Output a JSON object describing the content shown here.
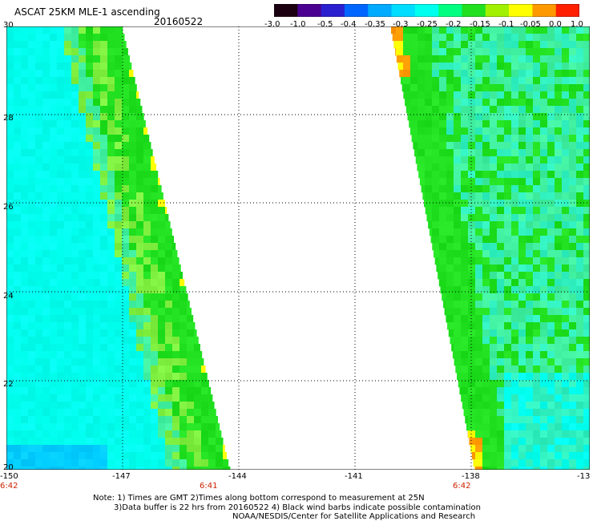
{
  "header": {
    "title": "ASCAT 25KM MLE-1 ascending",
    "date": "20160522"
  },
  "colorbar": {
    "labels": [
      "-3.0",
      "-1.0",
      "-0.5",
      "-0.4",
      "-0.35",
      "-0.3",
      "-0.25",
      "-0.2",
      "-0.15",
      "-0.1",
      "-0.05",
      "0.0",
      "1.0"
    ],
    "colors": [
      "#1a0010",
      "#4a0090",
      "#2a20d0",
      "#0066ff",
      "#00aaff",
      "#00ddff",
      "#00ffee",
      "#00ff80",
      "#20e020",
      "#a0f000",
      "#ffff00",
      "#ff9900",
      "#ff2000"
    ]
  },
  "axes": {
    "y_ticks": [
      "30",
      "28",
      "26",
      "24",
      "22",
      "20"
    ],
    "x_ticks": [
      "-150",
      "-147",
      "-144",
      "-141",
      "-138",
      "-13"
    ],
    "x_range": [
      -150,
      -135
    ],
    "y_range": [
      20,
      30
    ]
  },
  "times": [
    "6:42",
    "6:41",
    "6:42"
  ],
  "notes": {
    "line1": "Note: 1) Times are GMT 2)Times along bottom correspond to measurement at 25N",
    "line2": "3)Data buffer is 22 hrs from 20160522 4) Black wind barbs indicate possible contamination",
    "line3": "NOAA/NESDIS/Center for Satellite Applications and Research"
  },
  "colors": {
    "cyan": "#00ffee",
    "green": "#20e020",
    "lime": "#80f040",
    "yellow": "#ffff00",
    "orange": "#ff9900"
  }
}
